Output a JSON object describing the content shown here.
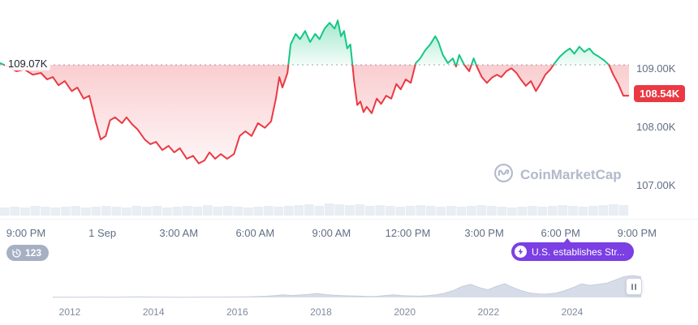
{
  "watermark": {
    "text": "CoinMarketCap"
  },
  "badges": {
    "count": "123",
    "news": "U.S. establishes Str..."
  },
  "colors": {
    "green": "#16c784",
    "red": "#ea3943",
    "purple": "#7b3fe4",
    "axis_text": "#616e85",
    "volume": "#e9edf4",
    "nav_fill": "#d7dde8"
  },
  "chart_data": [
    {
      "type": "line",
      "title": "Intraday price (24h)",
      "open_label": "109.07K",
      "current_label": "108.54K",
      "baseline": 109.07,
      "last": 108.54,
      "ylim": [
        106.9,
        110.2
      ],
      "y_ticks": [
        "109.00K",
        "108.00K",
        "107.00K"
      ],
      "y_tick_values": [
        109.0,
        108.0,
        107.0
      ],
      "x_ticks": [
        "9:00 PM",
        "1 Sep",
        "3:00 AM",
        "6:00 AM",
        "9:00 AM",
        "12:00 PM",
        "3:00 PM",
        "6:00 PM",
        "9:00 PM"
      ],
      "grid": false,
      "legend": false,
      "points": [
        [
          0,
          109.1
        ],
        [
          0.013,
          109.04
        ],
        [
          0.026,
          108.96
        ],
        [
          0.039,
          108.99
        ],
        [
          0.052,
          108.9
        ],
        [
          0.065,
          108.93
        ],
        [
          0.075,
          108.82
        ],
        [
          0.084,
          108.86
        ],
        [
          0.093,
          108.72
        ],
        [
          0.103,
          108.79
        ],
        [
          0.114,
          108.62
        ],
        [
          0.123,
          108.68
        ],
        [
          0.133,
          108.49
        ],
        [
          0.142,
          108.54
        ],
        [
          0.152,
          108.1
        ],
        [
          0.16,
          107.79
        ],
        [
          0.168,
          107.85
        ],
        [
          0.175,
          108.12
        ],
        [
          0.183,
          108.17
        ],
        [
          0.194,
          108.07
        ],
        [
          0.201,
          108.17
        ],
        [
          0.21,
          108.05
        ],
        [
          0.219,
          107.96
        ],
        [
          0.23,
          107.79
        ],
        [
          0.239,
          107.71
        ],
        [
          0.248,
          107.75
        ],
        [
          0.258,
          107.61
        ],
        [
          0.268,
          107.68
        ],
        [
          0.277,
          107.57
        ],
        [
          0.286,
          107.64
        ],
        [
          0.297,
          107.46
        ],
        [
          0.307,
          107.51
        ],
        [
          0.316,
          107.38
        ],
        [
          0.325,
          107.43
        ],
        [
          0.333,
          107.57
        ],
        [
          0.342,
          107.46
        ],
        [
          0.351,
          107.54
        ],
        [
          0.361,
          107.46
        ],
        [
          0.372,
          107.54
        ],
        [
          0.381,
          107.85
        ],
        [
          0.39,
          107.93
        ],
        [
          0.4,
          107.85
        ],
        [
          0.41,
          108.07
        ],
        [
          0.421,
          107.99
        ],
        [
          0.431,
          108.1
        ],
        [
          0.439,
          108.51
        ],
        [
          0.444,
          108.86
        ],
        [
          0.449,
          108.68
        ],
        [
          0.457,
          108.93
        ],
        [
          0.462,
          109.42
        ],
        [
          0.47,
          109.6
        ],
        [
          0.477,
          109.51
        ],
        [
          0.485,
          109.65
        ],
        [
          0.493,
          109.46
        ],
        [
          0.501,
          109.6
        ],
        [
          0.508,
          109.51
        ],
        [
          0.516,
          109.69
        ],
        [
          0.524,
          109.79
        ],
        [
          0.532,
          109.69
        ],
        [
          0.537,
          109.83
        ],
        [
          0.542,
          109.56
        ],
        [
          0.547,
          109.65
        ],
        [
          0.552,
          109.35
        ],
        [
          0.557,
          109.42
        ],
        [
          0.563,
          108.79
        ],
        [
          0.568,
          108.38
        ],
        [
          0.573,
          108.44
        ],
        [
          0.578,
          108.26
        ],
        [
          0.583,
          108.35
        ],
        [
          0.591,
          108.24
        ],
        [
          0.599,
          108.49
        ],
        [
          0.606,
          108.4
        ],
        [
          0.614,
          108.54
        ],
        [
          0.622,
          108.49
        ],
        [
          0.63,
          108.74
        ],
        [
          0.637,
          108.65
        ],
        [
          0.645,
          108.82
        ],
        [
          0.653,
          108.76
        ],
        [
          0.661,
          109.1
        ],
        [
          0.668,
          109.18
        ],
        [
          0.676,
          109.32
        ],
        [
          0.684,
          109.42
        ],
        [
          0.692,
          109.56
        ],
        [
          0.697,
          109.46
        ],
        [
          0.704,
          109.24
        ],
        [
          0.712,
          109.1
        ],
        [
          0.72,
          109.18
        ],
        [
          0.725,
          109.04
        ],
        [
          0.73,
          109.24
        ],
        [
          0.738,
          109.07
        ],
        [
          0.746,
          108.96
        ],
        [
          0.753,
          109.18
        ],
        [
          0.758,
          109.04
        ],
        [
          0.766,
          108.86
        ],
        [
          0.774,
          108.76
        ],
        [
          0.782,
          108.85
        ],
        [
          0.79,
          108.9
        ],
        [
          0.797,
          108.86
        ],
        [
          0.805,
          108.96
        ],
        [
          0.813,
          109.01
        ],
        [
          0.821,
          108.93
        ],
        [
          0.828,
          108.82
        ],
        [
          0.836,
          108.71
        ],
        [
          0.844,
          108.79
        ],
        [
          0.852,
          108.62
        ],
        [
          0.859,
          108.74
        ],
        [
          0.867,
          108.9
        ],
        [
          0.875,
          108.99
        ],
        [
          0.882,
          109.1
        ],
        [
          0.89,
          109.21
        ],
        [
          0.898,
          109.29
        ],
        [
          0.906,
          109.35
        ],
        [
          0.913,
          109.26
        ],
        [
          0.921,
          109.38
        ],
        [
          0.929,
          109.29
        ],
        [
          0.937,
          109.35
        ],
        [
          0.944,
          109.26
        ],
        [
          0.952,
          109.21
        ],
        [
          0.96,
          109.15
        ],
        [
          0.968,
          109.07
        ],
        [
          0.975,
          108.9
        ],
        [
          0.983,
          108.74
        ],
        [
          0.991,
          108.54
        ],
        [
          1,
          108.54
        ]
      ],
      "volume": [
        0.5,
        0.55,
        0.5,
        0.6,
        0.55,
        0.5,
        0.55,
        0.6,
        0.5,
        0.55,
        0.6,
        0.55,
        0.5,
        0.6,
        0.55,
        0.6,
        0.5,
        0.55,
        0.6,
        0.55,
        0.65,
        0.55,
        0.6,
        0.55,
        0.5,
        0.55,
        0.6,
        0.55,
        0.6,
        0.65,
        0.7,
        0.6,
        0.75,
        0.7,
        0.65,
        0.7,
        0.6,
        0.65,
        0.6,
        0.55,
        0.6,
        0.65,
        0.6,
        0.55,
        0.6,
        0.55,
        0.6,
        0.65,
        0.6,
        0.55,
        0.5,
        0.55,
        0.6,
        0.55,
        0.6,
        0.65,
        0.6,
        0.55,
        0.6,
        0.65,
        0.7,
        0.65
      ]
    },
    {
      "type": "area",
      "title": "All-time range navigator",
      "x_ticks": [
        "2012",
        "2014",
        "2016",
        "2018",
        "2020",
        "2022",
        "2024"
      ],
      "values": [
        0.012,
        0.012,
        0.013,
        0.012,
        0.014,
        0.015,
        0.013,
        0.012,
        0.013,
        0.02,
        0.025,
        0.02,
        0.016,
        0.014,
        0.012,
        0.011,
        0.012,
        0.013,
        0.014,
        0.016,
        0.018,
        0.02,
        0.024,
        0.03,
        0.04,
        0.055,
        0.08,
        0.12,
        0.09,
        0.11,
        0.14,
        0.18,
        0.13,
        0.1,
        0.08,
        0.07,
        0.06,
        0.04,
        0.05,
        0.09,
        0.12,
        0.08,
        0.07,
        0.06,
        0.08,
        0.12,
        0.2,
        0.32,
        0.5,
        0.6,
        0.45,
        0.35,
        0.5,
        0.63,
        0.45,
        0.3,
        0.2,
        0.16,
        0.15,
        0.2,
        0.3,
        0.45,
        0.62,
        0.55,
        0.6,
        0.66,
        0.8,
        0.95,
        1,
        0.94
      ]
    }
  ]
}
